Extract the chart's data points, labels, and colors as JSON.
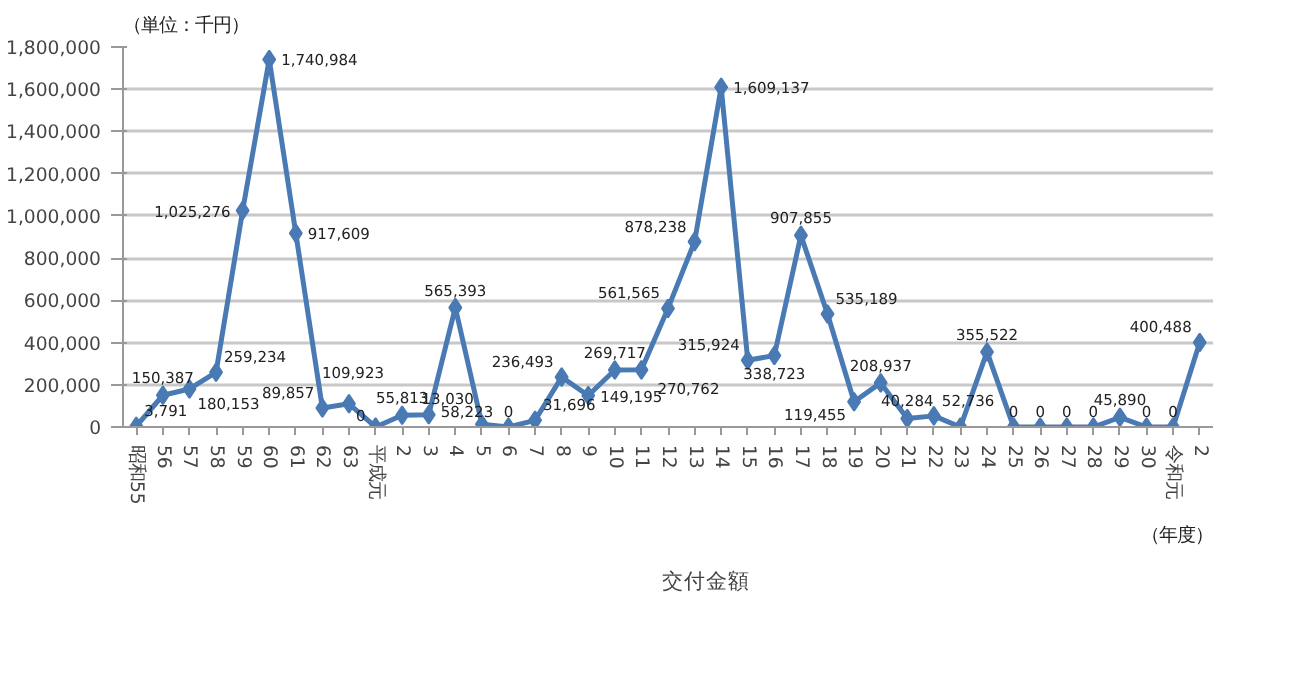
{
  "chart_data": {
    "type": "line",
    "categories": [
      "昭和55",
      "56",
      "57",
      "58",
      "59",
      "60",
      "61",
      "62",
      "63",
      "平成元",
      "2",
      "3",
      "4",
      "5",
      "6",
      "7",
      "8",
      "9",
      "10",
      "11",
      "12",
      "13",
      "14",
      "15",
      "16",
      "17",
      "18",
      "19",
      "20",
      "21",
      "22",
      "23",
      "24",
      "25",
      "26",
      "27",
      "28",
      "29",
      "30",
      "令和元",
      "2"
    ],
    "series": [
      {
        "name": "交付金額",
        "color": "#4a7ab4",
        "values": [
          3791,
          150387,
          180153,
          259234,
          1025276,
          1740984,
          917609,
          89857,
          109923,
          0,
          55813,
          58223,
          565393,
          13030,
          0,
          31696,
          236493,
          149195,
          269717,
          270762,
          561565,
          878238,
          1609137,
          315924,
          338723,
          907855,
          535189,
          119455,
          208937,
          40284,
          52736,
          0,
          355522,
          0,
          0,
          0,
          0,
          45890,
          0,
          0,
          400488
        ],
        "value_labels": [
          "3,791",
          "150,387",
          "180,153",
          "259,234",
          "1,025,276",
          "1,740,984",
          "917,609",
          "89,857",
          "109,923",
          "0",
          "55,813",
          "58,223",
          "565,393",
          "13,030",
          "0",
          "31,696",
          "236,493",
          "149,195",
          "269,717",
          "270,762",
          "561,565",
          "878,238",
          "1,609,137",
          "315,924",
          "338,723",
          "907,855",
          "535,189",
          "119,455",
          "208,937",
          "40,284",
          "52,736",
          null,
          "355,522",
          "0",
          "0",
          "0",
          "0",
          "45,890",
          "0",
          "0",
          "400,488"
        ]
      }
    ],
    "ylim": [
      0,
      1800000
    ],
    "yticks": [
      {
        "value": 0,
        "label": "0"
      },
      {
        "value": 200000,
        "label": "200,000"
      },
      {
        "value": 400000,
        "label": "400,000"
      },
      {
        "value": 600000,
        "label": "600,000"
      },
      {
        "value": 800000,
        "label": "800,000"
      },
      {
        "value": 1000000,
        "label": "1,000,000"
      },
      {
        "value": 1200000,
        "label": "1,200,000"
      },
      {
        "value": 1400000,
        "label": "1,400,000"
      },
      {
        "value": 1600000,
        "label": "1,600,000"
      },
      {
        "value": 1800000,
        "label": "1,800,000"
      }
    ],
    "annotations": [
      "（単位：千円）",
      "（年度）"
    ],
    "grid": "y",
    "legend": "bottom",
    "marker": "diamond",
    "line_style": "solid"
  }
}
